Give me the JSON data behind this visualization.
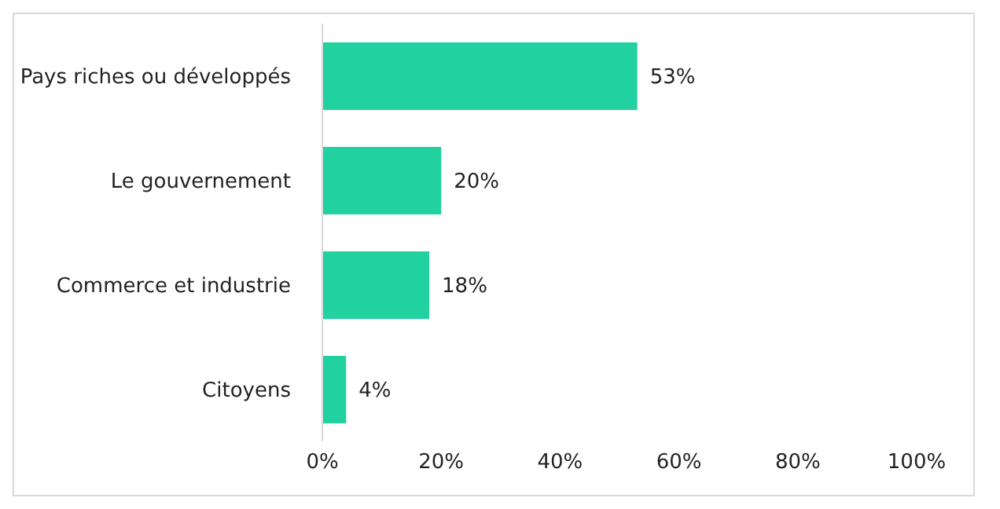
{
  "chart_data": {
    "type": "bar",
    "orientation": "horizontal",
    "categories": [
      "Pays riches ou développés",
      "Le gouvernement",
      "Commerce et industrie",
      "Citoyens"
    ],
    "values": [
      53,
      20,
      18,
      4
    ],
    "value_labels": [
      "53%",
      "20%",
      "18%",
      "4%"
    ],
    "color": "#22d1a0",
    "xlim": [
      0,
      100
    ],
    "xticks": [
      {
        "value": 0,
        "label": "0%"
      },
      {
        "value": 20,
        "label": "20%"
      },
      {
        "value": 40,
        "label": "40%"
      },
      {
        "value": 60,
        "label": "60%"
      },
      {
        "value": 80,
        "label": "80%"
      },
      {
        "value": 100,
        "label": "100%"
      }
    ],
    "grid": false,
    "legend": false
  }
}
